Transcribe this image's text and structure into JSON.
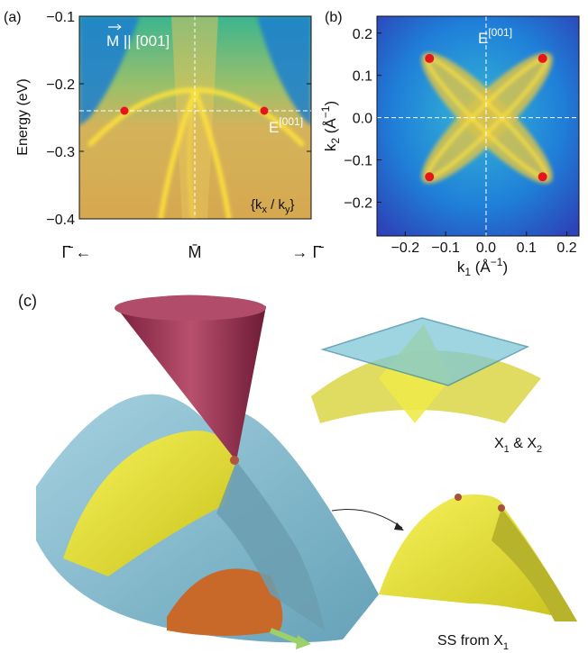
{
  "panel_a": {
    "label": "(a)",
    "ylabel": "Energy (eV)",
    "ylim": [
      -0.4,
      -0.1
    ],
    "yticks": [
      {
        "value": -0.4,
        "label": "−0.4"
      },
      {
        "value": -0.3,
        "label": "−0.3"
      },
      {
        "value": -0.2,
        "label": "−0.2"
      },
      {
        "value": -0.1,
        "label": "−0.1"
      }
    ],
    "fermi_energy": -0.24,
    "x_labels": [
      "Γ̄ ←",
      "M̄",
      "→ Γ̄"
    ],
    "direction": "M || [001]",
    "energy_label": {
      "base": "E",
      "sup": "[001]"
    },
    "channel": [
      "{k",
      "x",
      " / k",
      "y",
      "}"
    ]
  },
  "panel_b": {
    "label": "(b)",
    "xlabel": [
      "k",
      "1",
      " (Å",
      "−1",
      ")"
    ],
    "ylabel": [
      "k",
      "2",
      " (Å",
      "−1",
      ")"
    ],
    "xlim": [
      -0.27,
      0.23
    ],
    "ylim": [
      -0.28,
      0.24
    ],
    "xticks": [
      {
        "value": -0.2,
        "label": "−0.2"
      },
      {
        "value": -0.1,
        "label": "−0.1"
      },
      {
        "value": 0,
        "label": "0.0"
      },
      {
        "value": 0.1,
        "label": "0.1"
      },
      {
        "value": 0.2,
        "label": "0.2"
      }
    ],
    "yticks": [
      {
        "value": -0.2,
        "label": "−0.2"
      },
      {
        "value": -0.1,
        "label": "−0.1"
      },
      {
        "value": 0,
        "label": "0.0"
      },
      {
        "value": 0.1,
        "label": "0.1"
      },
      {
        "value": 0.2,
        "label": "0.2"
      }
    ],
    "points_x": [
      -0.14,
      0.14,
      -0.14,
      0.14
    ],
    "points_y": [
      0.14,
      0.14,
      -0.14,
      -0.14
    ],
    "energy_label": {
      "base": "E",
      "sup": "[001]"
    }
  },
  "panel_c": {
    "label": "(c)",
    "label_top": [
      "X",
      "1",
      " & X",
      "2"
    ],
    "label_bottom": [
      "SS from X",
      "1"
    ]
  }
}
